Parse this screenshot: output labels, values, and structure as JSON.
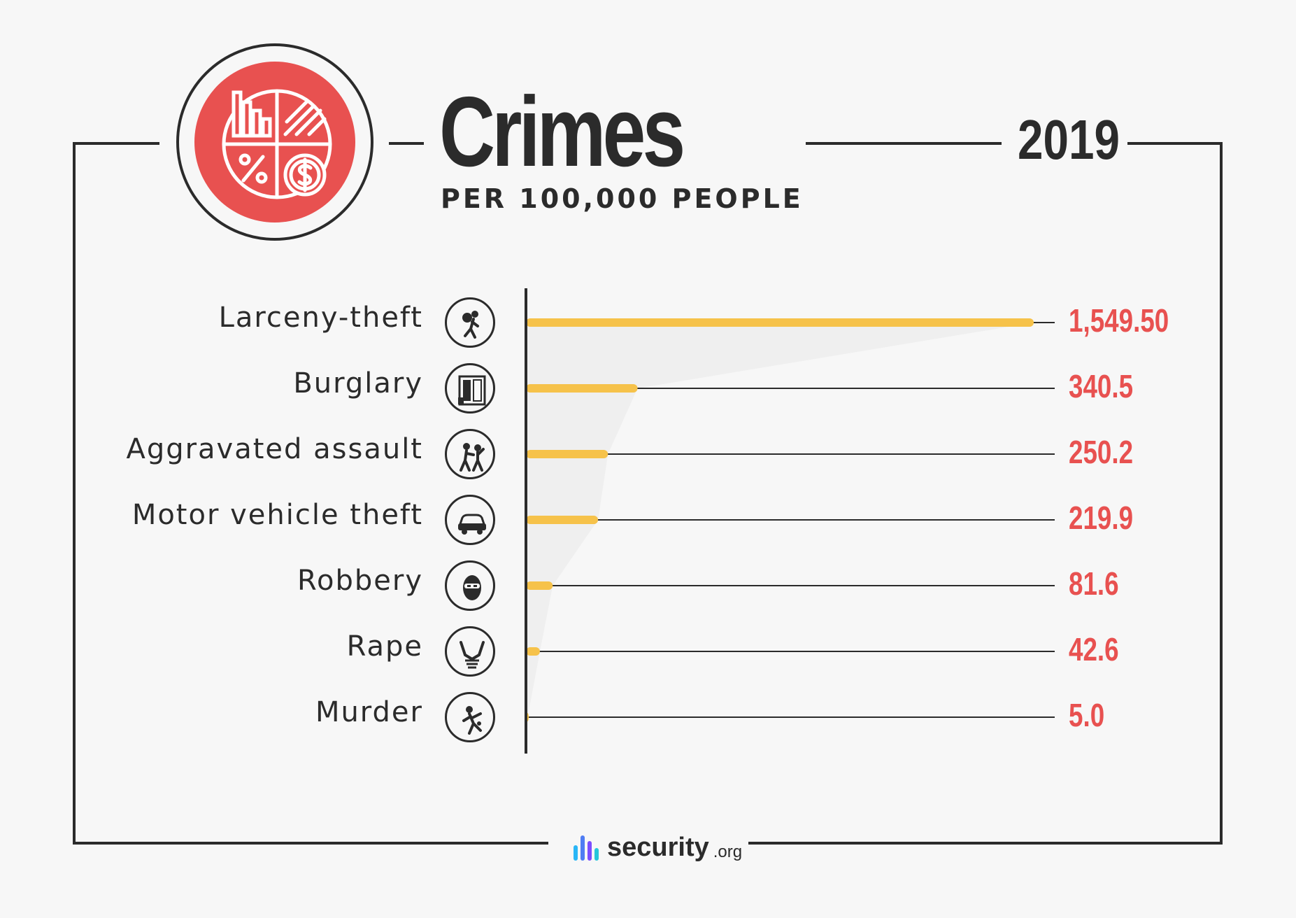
{
  "header": {
    "title": "Crimes",
    "subtitle": "PER 100,000 PEOPLE",
    "year": "2019"
  },
  "brand": {
    "name": "security",
    "tld": ".org"
  },
  "colors": {
    "accent": "#e85150",
    "bar": "#f6c24a",
    "ink": "#2b2b2b",
    "background": "#f7f7f7"
  },
  "rows": [
    {
      "label": "Larceny-theft",
      "value_text": "1,549.50",
      "icon": "thief-running-icon"
    },
    {
      "label": "Burglary",
      "value_text": "340.5",
      "icon": "door-break-in-icon"
    },
    {
      "label": "Aggravated assault",
      "value_text": "250.2",
      "icon": "fighting-people-icon"
    },
    {
      "label": "Motor vehicle theft",
      "value_text": "219.9",
      "icon": "car-icon"
    },
    {
      "label": "Robbery",
      "value_text": "81.6",
      "icon": "masked-face-icon"
    },
    {
      "label": "Rape",
      "value_text": "42.6",
      "icon": "hands-icon"
    },
    {
      "label": "Murder",
      "value_text": "5.0",
      "icon": "victim-icon"
    }
  ],
  "chart_data": {
    "type": "bar",
    "orientation": "horizontal",
    "title": "Crimes",
    "subtitle": "PER 100,000 PEOPLE",
    "year": "2019",
    "categories": [
      "Larceny-theft",
      "Burglary",
      "Aggravated assault",
      "Motor vehicle theft",
      "Robbery",
      "Rape",
      "Murder"
    ],
    "values": [
      1549.5,
      340.5,
      250.2,
      219.9,
      81.6,
      42.6,
      5.0
    ],
    "data_labels": [
      "1,549.50",
      "340.5",
      "250.2",
      "219.9",
      "81.6",
      "42.6",
      "5.0"
    ],
    "xlim": [
      0,
      1549.5
    ],
    "grid": false,
    "legend": "none"
  }
}
